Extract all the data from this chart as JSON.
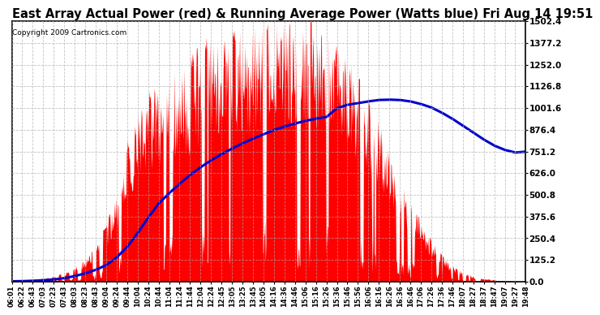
{
  "title": "East Array Actual Power (red) & Running Average Power (Watts blue) Fri Aug 14 19:51",
  "copyright": "Copyright 2009 Cartronics.com",
  "ymin": 0.0,
  "ymax": 1502.4,
  "yticks": [
    0.0,
    125.2,
    250.4,
    375.6,
    500.8,
    626.0,
    751.2,
    876.4,
    1001.6,
    1126.8,
    1252.0,
    1377.2,
    1502.4
  ],
  "ytick_labels": [
    "0.0",
    "125.2",
    "250.4",
    "375.6",
    "500.8",
    "626.0",
    "751.2",
    "876.4",
    "1001.6",
    "1126.8",
    "1252.0",
    "1377.2",
    "1502.4"
  ],
  "background_color": "#ffffff",
  "plot_background": "#ffffff",
  "grid_color": "#aaaaaa",
  "red_color": "#ff0000",
  "blue_color": "#0000cc",
  "title_fontsize": 10.5,
  "xtick_labels": [
    "06:01",
    "06:22",
    "06:43",
    "07:03",
    "07:23",
    "07:43",
    "08:03",
    "08:23",
    "08:43",
    "09:04",
    "09:24",
    "09:44",
    "10:04",
    "10:24",
    "10:44",
    "11:04",
    "11:24",
    "11:44",
    "12:04",
    "12:24",
    "12:45",
    "13:05",
    "13:25",
    "13:45",
    "14:05",
    "14:16",
    "14:36",
    "14:46",
    "15:06",
    "15:16",
    "15:26",
    "15:36",
    "15:46",
    "15:56",
    "16:06",
    "16:16",
    "16:26",
    "16:36",
    "16:46",
    "17:06",
    "17:26",
    "17:36",
    "17:46",
    "18:07",
    "18:27",
    "18:37",
    "18:47",
    "19:07",
    "19:27",
    "19:48"
  ],
  "base_envelope": [
    3,
    5,
    10,
    18,
    30,
    50,
    80,
    130,
    200,
    310,
    500,
    750,
    950,
    1050,
    1100,
    1150,
    1180,
    1220,
    1280,
    1330,
    1360,
    1390,
    1400,
    1410,
    1420,
    1430,
    1440,
    1440,
    1430,
    1420,
    1380,
    1320,
    1250,
    1150,
    1020,
    880,
    720,
    580,
    450,
    340,
    230,
    150,
    90,
    55,
    30,
    18,
    10,
    5,
    3,
    2
  ],
  "running_avg": [
    2,
    3,
    5,
    8,
    13,
    20,
    32,
    48,
    68,
    95,
    140,
    200,
    280,
    370,
    450,
    510,
    565,
    615,
    660,
    700,
    735,
    768,
    798,
    825,
    850,
    875,
    895,
    912,
    928,
    940,
    950,
    1000,
    1020,
    1030,
    1040,
    1048,
    1050,
    1048,
    1040,
    1025,
    1005,
    975,
    940,
    900,
    860,
    820,
    785,
    760,
    745,
    750
  ]
}
